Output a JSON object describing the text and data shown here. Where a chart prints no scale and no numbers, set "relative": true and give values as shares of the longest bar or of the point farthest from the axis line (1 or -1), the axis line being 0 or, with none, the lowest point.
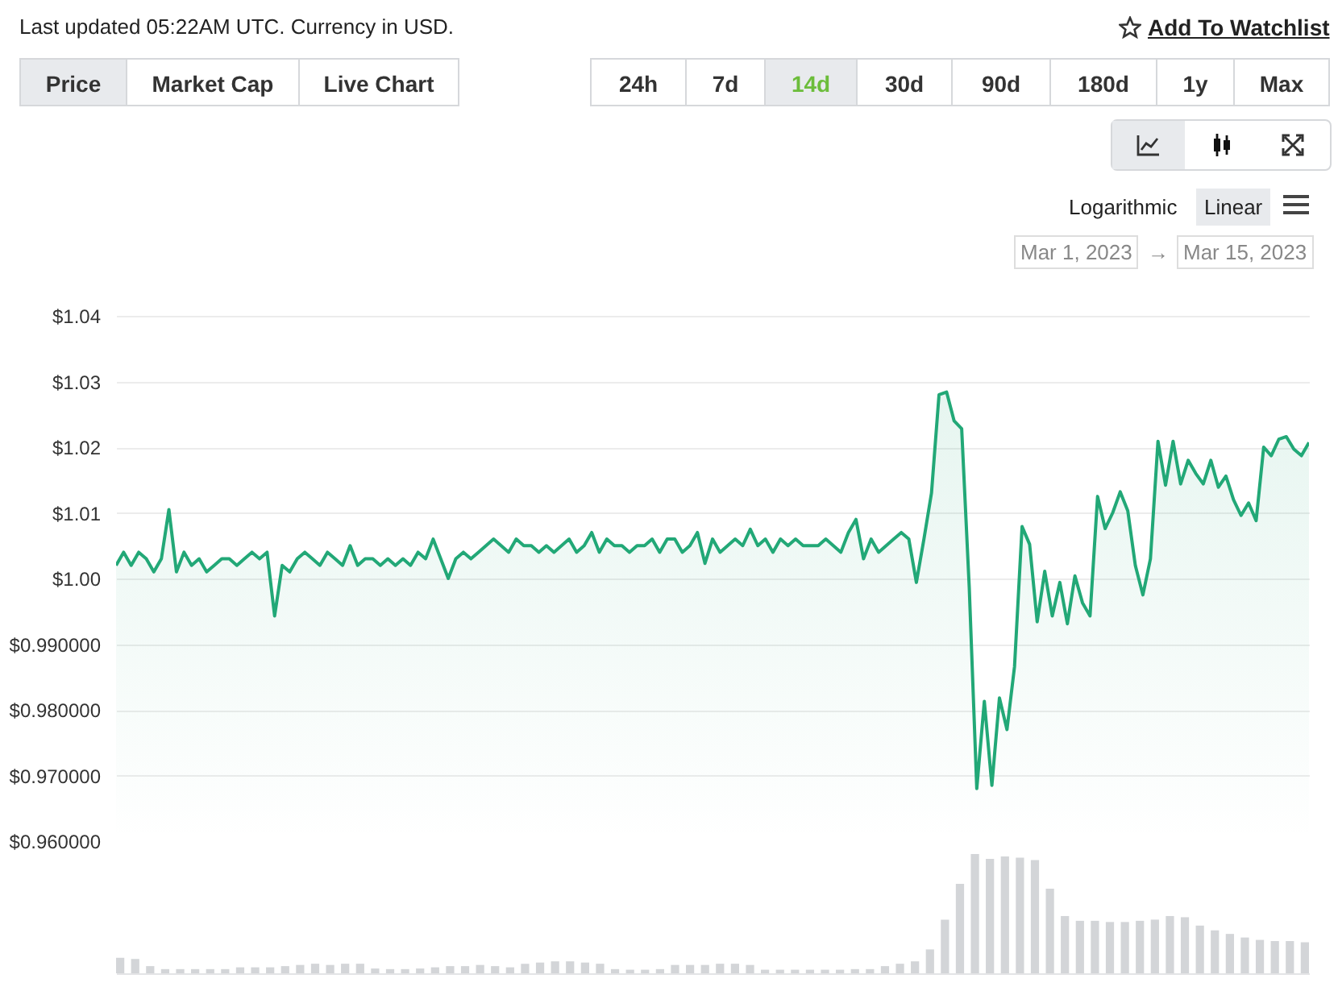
{
  "chart_data": [
    {
      "type": "area",
      "annotations": [
        "Last updated 05:22AM UTC. Currency in USD.",
        "Add To Watchlist",
        "Price",
        "Market Cap",
        "Live Chart",
        "24h",
        "7d",
        "14d",
        "30d",
        "90d",
        "180d",
        "1y",
        "Max",
        "Logarithmic",
        "Linear",
        "Mar 1, 2023",
        "→",
        "Mar 15, 2023"
      ],
      "categories": [
        null,
        null,
        null,
        null,
        null,
        null,
        null,
        null,
        null,
        null,
        null,
        null,
        null,
        null,
        null,
        null,
        null,
        null,
        null,
        null,
        null,
        null,
        null,
        null,
        null,
        null,
        null,
        null,
        null,
        null,
        null,
        null,
        null,
        null,
        null,
        null,
        null,
        null,
        null,
        null,
        null,
        null,
        null,
        null,
        null,
        null,
        null,
        null,
        null,
        null,
        null,
        null,
        null,
        null,
        null,
        null,
        null,
        null,
        null,
        null,
        null,
        null,
        null,
        null,
        null,
        null,
        null,
        null,
        null,
        null,
        null,
        null,
        null,
        null,
        null,
        null,
        null,
        null,
        null,
        null,
        null,
        null,
        null,
        null,
        null,
        null,
        null,
        null,
        null,
        null,
        null,
        null,
        null,
        null,
        null,
        null,
        null,
        null,
        null,
        null,
        null,
        null,
        null,
        null,
        null,
        null,
        null,
        null,
        null,
        null,
        null,
        null,
        null,
        null,
        null,
        null,
        null,
        null,
        null,
        null,
        null,
        null,
        null,
        null,
        null,
        null,
        null,
        null,
        null,
        null,
        null,
        null,
        null,
        null,
        null,
        null,
        null,
        null,
        null,
        null,
        null,
        null,
        null,
        null,
        null,
        null,
        null,
        null,
        null,
        null,
        null,
        null,
        null,
        null,
        null,
        null,
        null,
        null,
        null
      ],
      "series": [
        {
          "color": "#22a877",
          "values": [
            1.002,
            1.004,
            1.002,
            1.004,
            1.003,
            1.001,
            1.003,
            1.0105,
            1.001,
            1.004,
            1.002,
            1.003,
            1.001,
            1.002,
            1.003,
            1.003,
            1.002,
            1.003,
            1.004,
            1.003,
            1.004,
            0.9943,
            1.002,
            1.001,
            1.003,
            1.004,
            1.003,
            1.002,
            1.004,
            1.003,
            1.002,
            1.005,
            1.002,
            1.003,
            1.003,
            1.002,
            1.003,
            1.002,
            1.003,
            1.002,
            1.004,
            1.003,
            1.006,
            1.003,
            1.0,
            1.003,
            1.004,
            1.003,
            1.004,
            1.005,
            1.006,
            1.005,
            1.004,
            1.006,
            1.005,
            1.005,
            1.004,
            1.005,
            1.004,
            1.005,
            1.006,
            1.004,
            1.005,
            1.007,
            1.004,
            1.006,
            1.005,
            1.005,
            1.004,
            1.005,
            1.005,
            1.006,
            1.004,
            1.006,
            1.006,
            1.004,
            1.005,
            1.007,
            1.0023,
            1.006,
            1.004,
            1.005,
            1.006,
            1.005,
            1.0075,
            1.005,
            1.006,
            1.004,
            1.006,
            1.005,
            1.006,
            1.005,
            1.005,
            1.005,
            1.006,
            1.005,
            1.004,
            1.007,
            1.009,
            1.003,
            1.006,
            1.004,
            1.005,
            1.006,
            1.007,
            1.006,
            0.9994,
            1.006,
            1.013,
            1.028,
            1.0284,
            1.024,
            1.0228,
            0.9987,
            0.968,
            0.9813,
            0.9685,
            0.9818,
            0.977,
            0.9866,
            1.0079,
            1.0052,
            0.9934,
            1.0011,
            0.9943,
            0.9994,
            0.9931,
            1.0004,
            0.9963,
            0.9943,
            1.0125,
            1.0076,
            1.01,
            1.0132,
            1.0103,
            1.002,
            0.9975,
            1.003,
            1.0209,
            1.0142,
            1.0209,
            1.0144,
            1.018,
            1.016,
            1.0144,
            1.018,
            1.0139,
            1.0156,
            1.012,
            1.0096,
            1.0115,
            1.0088,
            1.02,
            1.0187,
            1.0212,
            1.0216,
            1.0197,
            1.0187,
            1.0207
          ]
        }
      ],
      "ylim": [
        0.96,
        1.04
      ],
      "yticks": [
        {
          "value": 0.96,
          "label": "$0.960000"
        },
        {
          "value": 0.97,
          "label": "$0.970000"
        },
        {
          "value": 0.98,
          "label": "$0.980000"
        },
        {
          "value": 0.99,
          "label": "$0.990000"
        },
        {
          "value": 1.0,
          "label": "$1.00"
        },
        {
          "value": 1.01,
          "label": "$1.01"
        },
        {
          "value": 1.02,
          "label": "$1.02"
        },
        {
          "value": 1.03,
          "label": "$1.03"
        },
        {
          "value": 1.04,
          "label": "$1.04"
        }
      ],
      "grid": "y",
      "tick_labels": "y"
    },
    {
      "type": "bar",
      "relative": true,
      "tick_labels": false,
      "categories": [
        null,
        null,
        null,
        null,
        null,
        null,
        null,
        null,
        null,
        null,
        null,
        null,
        null,
        null,
        null,
        null,
        null,
        null,
        null,
        null,
        null,
        null,
        null,
        null,
        null,
        null,
        null,
        null,
        null,
        null,
        null,
        null,
        null,
        null,
        null,
        null,
        null,
        null,
        null,
        null,
        null,
        null,
        null,
        null,
        null,
        null,
        null,
        null,
        null,
        null,
        null,
        null,
        null,
        null,
        null,
        null,
        null,
        null,
        null,
        null,
        null,
        null,
        null,
        null,
        null,
        null,
        null,
        null,
        null,
        null,
        null,
        null,
        null,
        null,
        null,
        null,
        null,
        null,
        null,
        null
      ],
      "series": [
        {
          "color": "#d3d5d8",
          "values": [
            0.13,
            0.12,
            0.06,
            0.035,
            0.035,
            0.035,
            0.035,
            0.035,
            0.05,
            0.05,
            0.05,
            0.06,
            0.07,
            0.08,
            0.07,
            0.08,
            0.08,
            0.04,
            0.035,
            0.035,
            0.04,
            0.05,
            0.06,
            0.06,
            0.07,
            0.06,
            0.05,
            0.08,
            0.09,
            0.1,
            0.1,
            0.09,
            0.08,
            0.035,
            0.03,
            0.03,
            0.035,
            0.07,
            0.07,
            0.07,
            0.08,
            0.08,
            0.07,
            0.03,
            0.03,
            0.03,
            0.03,
            0.03,
            0.03,
            0.035,
            0.035,
            0.06,
            0.08,
            0.1,
            0.2,
            0.45,
            0.75,
            1.0,
            0.96,
            0.98,
            0.97,
            0.95,
            0.71,
            0.48,
            0.44,
            0.44,
            0.43,
            0.43,
            0.44,
            0.45,
            0.48,
            0.47,
            0.4,
            0.36,
            0.33,
            0.3,
            0.28,
            0.27,
            0.27,
            0.26
          ]
        }
      ]
    }
  ]
}
